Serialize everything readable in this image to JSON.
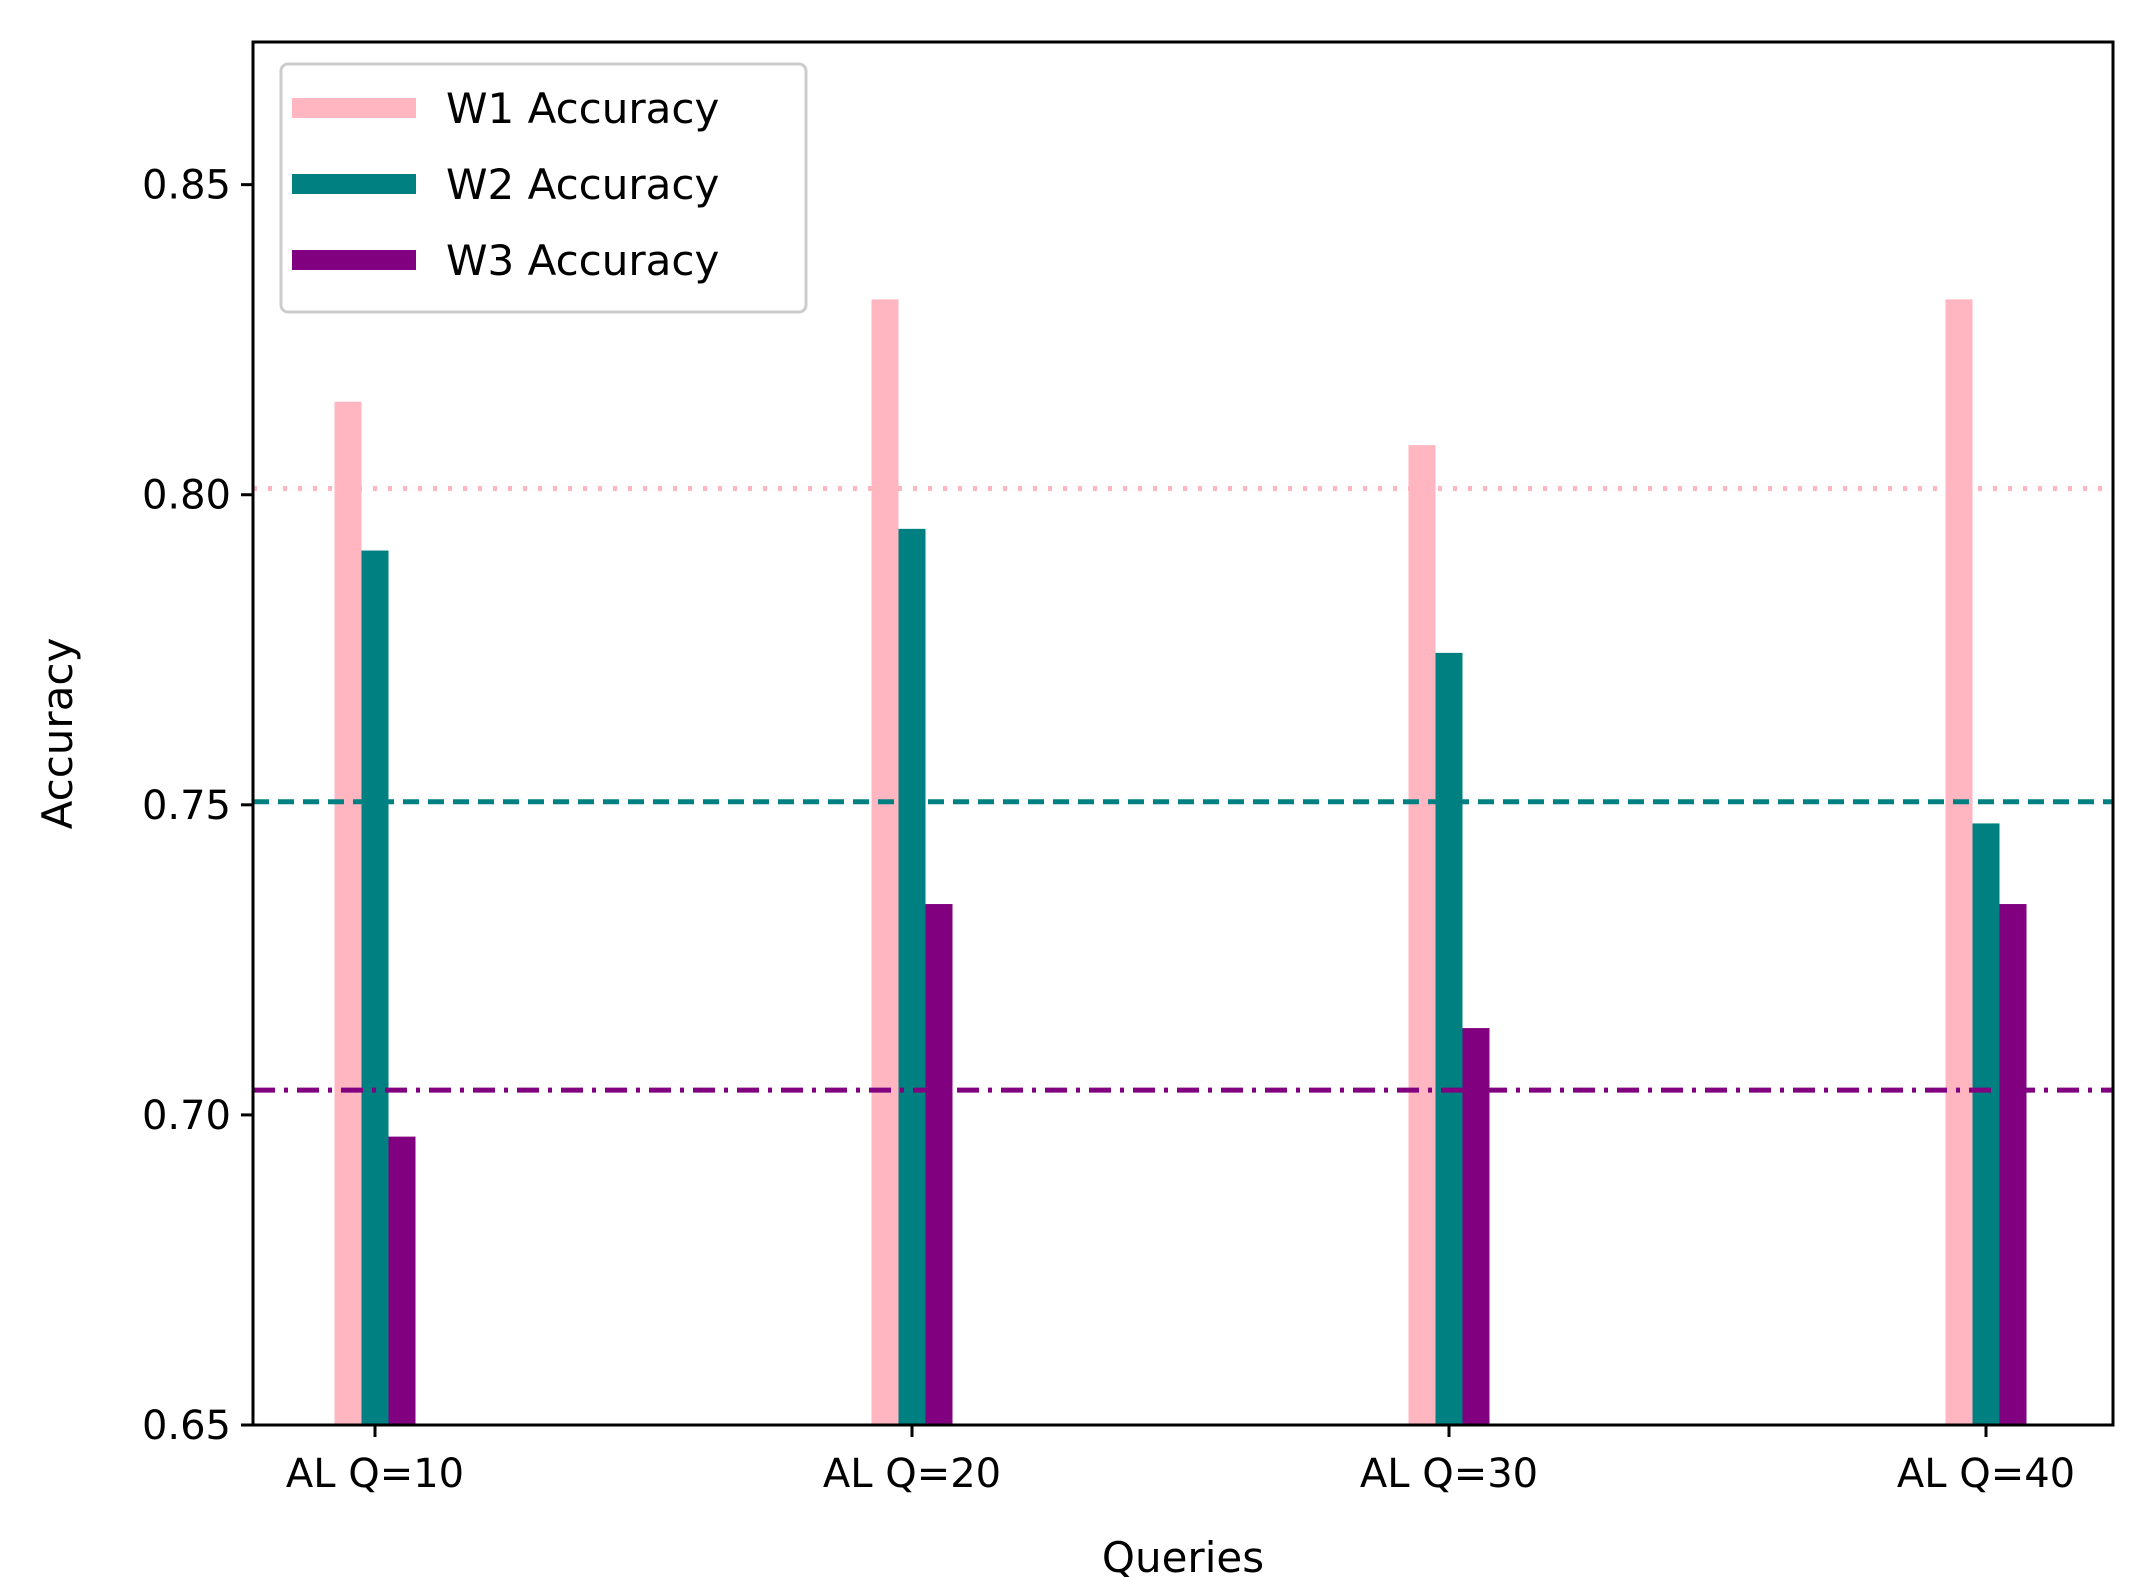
{
  "chart_data": {
    "type": "bar",
    "title": "",
    "xlabel": "Queries",
    "ylabel": "Accuracy",
    "ylim": [
      0.65,
      0.873
    ],
    "yticks": [
      0.65,
      0.7,
      0.75,
      0.8,
      0.85
    ],
    "ytick_labels": [
      "0.65",
      "0.70",
      "0.75",
      "0.80",
      "0.85"
    ],
    "categories": [
      "AL Q=10",
      "AL Q=20",
      "AL Q=30",
      "AL Q=40"
    ],
    "series": [
      {
        "name": "W1 Accuracy",
        "color": "#ffb6c1",
        "values": [
          0.815,
          0.8315,
          0.808,
          0.8315
        ]
      },
      {
        "name": "W2 Accuracy",
        "color": "#008080",
        "values": [
          0.791,
          0.7945,
          0.7745,
          0.747
        ]
      },
      {
        "name": "W3 Accuracy",
        "color": "#800080",
        "values": [
          0.6965,
          0.734,
          0.714,
          0.734
        ]
      }
    ],
    "reference_lines": [
      {
        "series": "W1 Accuracy",
        "value": 0.801,
        "style": "dotted",
        "color": "#ffb6c1"
      },
      {
        "series": "W2 Accuracy",
        "value": 0.7505,
        "style": "dashed",
        "color": "#008080"
      },
      {
        "series": "W3 Accuracy",
        "value": 0.704,
        "style": "dashdot",
        "color": "#800080"
      }
    ],
    "legend_position": "top-left",
    "grid": false
  }
}
